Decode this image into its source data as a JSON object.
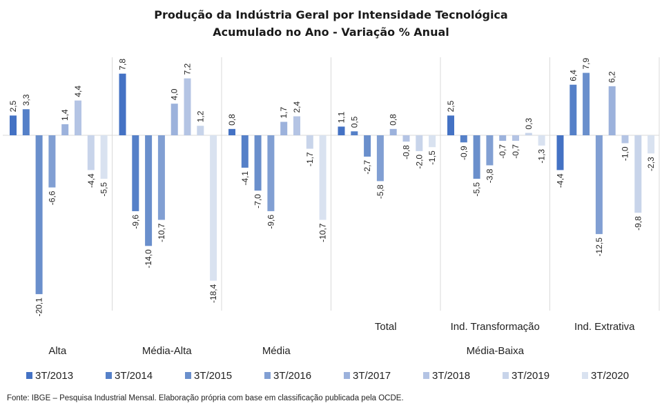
{
  "chart_data": {
    "type": "bar",
    "title": "Produção da Indústria Geral por Intensidade Tecnológica",
    "subtitle": "Acumulado no Ano - Variação % Anual",
    "categories": [
      "Alta",
      "Média-Alta",
      "Média",
      "Total",
      "Ind. Transformação",
      "Ind. Extrativa"
    ],
    "category_group_label": "Média-Baixa",
    "grouped_categories": [
      "Total",
      "Ind. Transformação",
      "Ind. Extrativa"
    ],
    "legend_position": "bottom",
    "value_labels": true,
    "series": [
      {
        "name": "3T/2013",
        "color": "#4472c4",
        "values": [
          2.5,
          7.8,
          0.8,
          1.1,
          2.5,
          -4.4
        ]
      },
      {
        "name": "3T/2014",
        "color": "#5580c8",
        "values": [
          3.3,
          -9.6,
          -4.1,
          0.5,
          -0.9,
          6.4
        ]
      },
      {
        "name": "3T/2015",
        "color": "#6a8fcc",
        "values": [
          -20.1,
          -14.0,
          -7.0,
          -2.7,
          -5.5,
          7.9
        ]
      },
      {
        "name": "3T/2016",
        "color": "#819fd3",
        "values": [
          -6.6,
          -10.7,
          -9.6,
          -5.8,
          -3.8,
          -12.5
        ]
      },
      {
        "name": "3T/2017",
        "color": "#9cb2dc",
        "values": [
          1.4,
          4.0,
          1.7,
          0.8,
          -0.7,
          6.2
        ]
      },
      {
        "name": "3T/2018",
        "color": "#b4c4e4",
        "values": [
          4.4,
          7.2,
          2.4,
          -0.8,
          -0.7,
          -1.0
        ]
      },
      {
        "name": "3T/2019",
        "color": "#c8d4ea",
        "values": [
          -4.4,
          1.2,
          -1.7,
          -2.0,
          0.3,
          -9.8
        ]
      },
      {
        "name": "3T/2020",
        "color": "#d9e2f0",
        "values": [
          -5.5,
          -18.4,
          -10.7,
          -1.5,
          -1.3,
          -2.3
        ]
      }
    ]
  },
  "source": "Fonte: IBGE – Pesquisa Industrial Mensal. Elaboração própria com base em classificação publicada pela OCDE."
}
